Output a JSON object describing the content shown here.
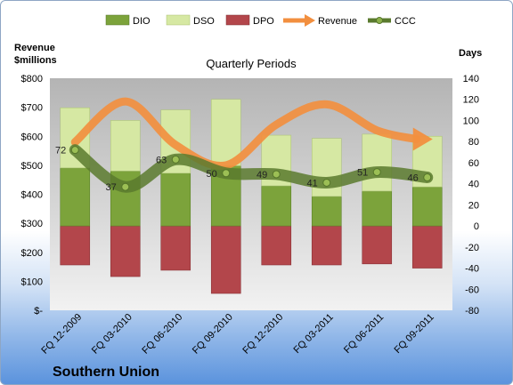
{
  "company": "Southern Union",
  "chart_data": {
    "type": "bar",
    "title": "Quarterly Periods",
    "left_axis": {
      "label_line1": "Revenue",
      "label_line2": "$millions",
      "ticks": [
        "$800",
        "$700",
        "$600",
        "$500",
        "$400",
        "$300",
        "$200",
        "$100",
        "$-"
      ],
      "ylim": [
        0,
        800
      ]
    },
    "right_axis": {
      "label": "Days",
      "ticks": [
        "140",
        "120",
        "100",
        "80",
        "60",
        "40",
        "20",
        "0",
        "-20",
        "-40",
        "-60",
        "-80"
      ],
      "ylim": [
        -80,
        140
      ]
    },
    "categories": [
      "FQ 12-2009",
      "FQ 03-2010",
      "FQ 06-2010",
      "FQ 09-2010",
      "FQ 12-2010",
      "FQ 03-2011",
      "FQ 06-2011",
      "FQ 09-2011"
    ],
    "legend": [
      "DIO",
      "DSO",
      "DPO",
      "Revenue",
      "CCC"
    ],
    "colors": {
      "dio": "#7ca33b",
      "dso": "#d6e8a3",
      "dpo": "#b3464b",
      "revenue": "#f28f3f",
      "ccc": "#5a7a2e"
    },
    "series": [
      {
        "name": "DIO",
        "axis": "days",
        "values": [
          55,
          52,
          50,
          57,
          38,
          28,
          33,
          37
        ]
      },
      {
        "name": "DSO",
        "axis": "days",
        "values": [
          57,
          48,
          60,
          63,
          48,
          55,
          54,
          48
        ]
      },
      {
        "name": "DPO",
        "axis": "days",
        "values": [
          -37,
          -48,
          -42,
          -64,
          -37,
          -37,
          -36,
          -40
        ]
      },
      {
        "name": "Revenue",
        "axis": "revenue",
        "values": [
          580,
          720,
          570,
          500,
          640,
          710,
          620,
          590
        ]
      },
      {
        "name": "CCC",
        "axis": "days",
        "values": [
          72,
          37,
          63,
          50,
          49,
          41,
          51,
          46
        ]
      }
    ],
    "ccc_labels": [
      "72",
      "37",
      "63",
      "50",
      "49",
      "41",
      "51",
      "46"
    ],
    "grid": false,
    "legend_position": "top"
  }
}
